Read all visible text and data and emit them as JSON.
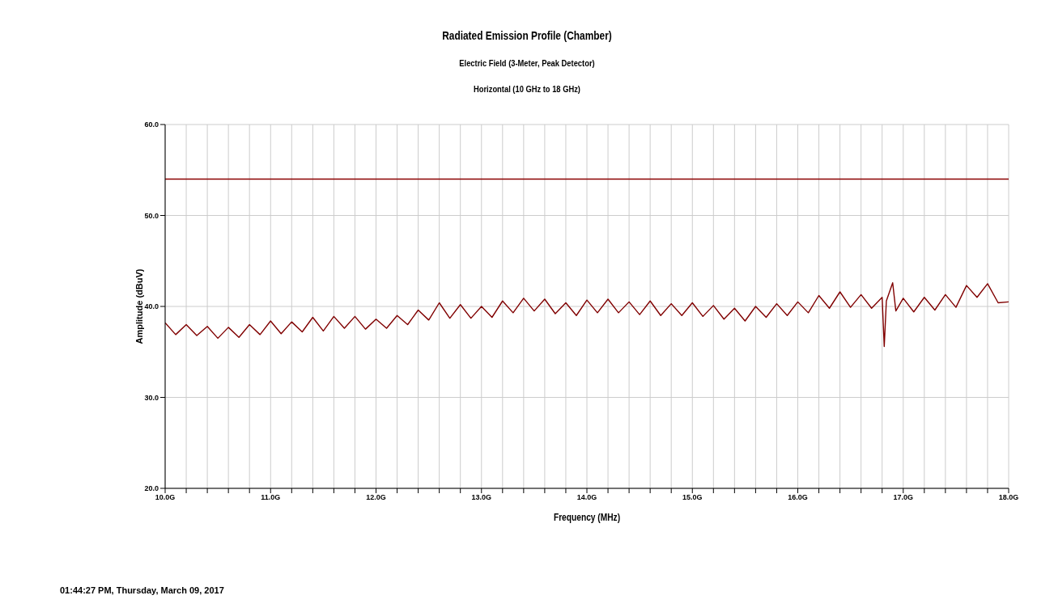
{
  "chart_data": {
    "type": "line",
    "title": "Radiated Emission Profile (Chamber)",
    "subtitle": "Electric Field (3-Meter, Peak Detector)\nHorizontal (10 GHz to 18 GHz)",
    "xlabel": "Frequency (MHz)",
    "ylabel": "Amplitude (dBuV)",
    "annotations": [
      "01:44:27 PM, Thursday, March 09, 2017"
    ],
    "x": [
      10.0,
      10.1,
      10.2,
      10.3,
      10.4,
      10.5,
      10.6,
      10.7,
      10.8,
      10.9,
      11.0,
      11.1,
      11.2,
      11.3,
      11.4,
      11.5,
      11.6,
      11.7,
      11.8,
      11.9,
      12.0,
      12.1,
      12.2,
      12.3,
      12.4,
      12.5,
      12.6,
      12.7,
      12.8,
      12.9,
      13.0,
      13.1,
      13.2,
      13.3,
      13.4,
      13.5,
      13.6,
      13.7,
      13.8,
      13.9,
      14.0,
      14.1,
      14.2,
      14.3,
      14.4,
      14.5,
      14.6,
      14.7,
      14.8,
      14.9,
      15.0,
      15.1,
      15.2,
      15.3,
      15.4,
      15.5,
      15.6,
      15.7,
      15.8,
      15.9,
      16.0,
      16.1,
      16.2,
      16.3,
      16.4,
      16.5,
      16.6,
      16.7,
      16.8,
      16.82,
      16.84,
      16.9,
      16.93,
      17.0,
      17.1,
      17.2,
      17.3,
      17.4,
      17.5,
      17.6,
      17.7,
      17.8,
      17.9,
      18.0
    ],
    "series": [
      {
        "color": "#800000",
        "values": [
          38.2,
          36.9,
          38.0,
          36.8,
          37.8,
          36.5,
          37.7,
          36.6,
          38.0,
          36.9,
          38.4,
          37.0,
          38.3,
          37.2,
          38.8,
          37.3,
          38.9,
          37.6,
          38.9,
          37.5,
          38.6,
          37.6,
          39.0,
          38.0,
          39.6,
          38.5,
          40.4,
          38.7,
          40.2,
          38.7,
          40.0,
          38.8,
          40.6,
          39.3,
          40.9,
          39.5,
          40.8,
          39.2,
          40.4,
          39.0,
          40.7,
          39.3,
          40.8,
          39.3,
          40.5,
          39.1,
          40.6,
          39.0,
          40.3,
          39.0,
          40.4,
          38.9,
          40.1,
          38.6,
          39.8,
          38.4,
          40.0,
          38.8,
          40.3,
          39.0,
          40.5,
          39.3,
          41.2,
          39.8,
          41.6,
          39.9,
          41.3,
          39.8,
          41.0,
          35.6,
          40.6,
          42.6,
          39.5,
          40.9,
          39.4,
          41.0,
          39.6,
          41.3,
          39.9,
          42.3,
          41.0,
          42.5,
          40.4,
          40.5
        ]
      }
    ],
    "ref_lines": [
      {
        "axis": "y",
        "value": 54,
        "color": "#8b0000"
      }
    ],
    "xlim": [
      10,
      18
    ],
    "xticks": [
      {
        "value": 10,
        "label": "10.0G"
      },
      {
        "value": 10.2,
        "label": null
      },
      {
        "value": 10.4,
        "label": null
      },
      {
        "value": 10.6,
        "label": null
      },
      {
        "value": 10.8,
        "label": null
      },
      {
        "value": 11,
        "label": "11.0G"
      },
      {
        "value": 11.2,
        "label": null
      },
      {
        "value": 11.4,
        "label": null
      },
      {
        "value": 11.6,
        "label": null
      },
      {
        "value": 11.8,
        "label": null
      },
      {
        "value": 12,
        "label": "12.0G"
      },
      {
        "value": 12.2,
        "label": null
      },
      {
        "value": 12.4,
        "label": null
      },
      {
        "value": 12.6,
        "label": null
      },
      {
        "value": 12.8,
        "label": null
      },
      {
        "value": 13,
        "label": "13.0G"
      },
      {
        "value": 13.2,
        "label": null
      },
      {
        "value": 13.4,
        "label": null
      },
      {
        "value": 13.6,
        "label": null
      },
      {
        "value": 13.8,
        "label": null
      },
      {
        "value": 14,
        "label": "14.0G"
      },
      {
        "value": 14.2,
        "label": null
      },
      {
        "value": 14.4,
        "label": null
      },
      {
        "value": 14.6,
        "label": null
      },
      {
        "value": 14.8,
        "label": null
      },
      {
        "value": 15,
        "label": "15.0G"
      },
      {
        "value": 15.2,
        "label": null
      },
      {
        "value": 15.4,
        "label": null
      },
      {
        "value": 15.6,
        "label": null
      },
      {
        "value": 15.8,
        "label": null
      },
      {
        "value": 16,
        "label": "16.0G"
      },
      {
        "value": 16.2,
        "label": null
      },
      {
        "value": 16.4,
        "label": null
      },
      {
        "value": 16.6,
        "label": null
      },
      {
        "value": 16.8,
        "label": null
      },
      {
        "value": 17,
        "label": "17.0G"
      },
      {
        "value": 17.2,
        "label": null
      },
      {
        "value": 17.4,
        "label": null
      },
      {
        "value": 17.6,
        "label": null
      },
      {
        "value": 17.8,
        "label": null
      },
      {
        "value": 18,
        "label": "18.0G"
      }
    ],
    "ylim": [
      20,
      60
    ],
    "yticks": [
      {
        "value": 20,
        "label": "20.0"
      },
      {
        "value": 30,
        "label": "30.0"
      },
      {
        "value": 40,
        "label": "40.0"
      },
      {
        "value": 50,
        "label": "50.0"
      },
      {
        "value": 60,
        "label": "60.0"
      }
    ],
    "grid": true,
    "marker": "none",
    "line_style": "solid"
  }
}
